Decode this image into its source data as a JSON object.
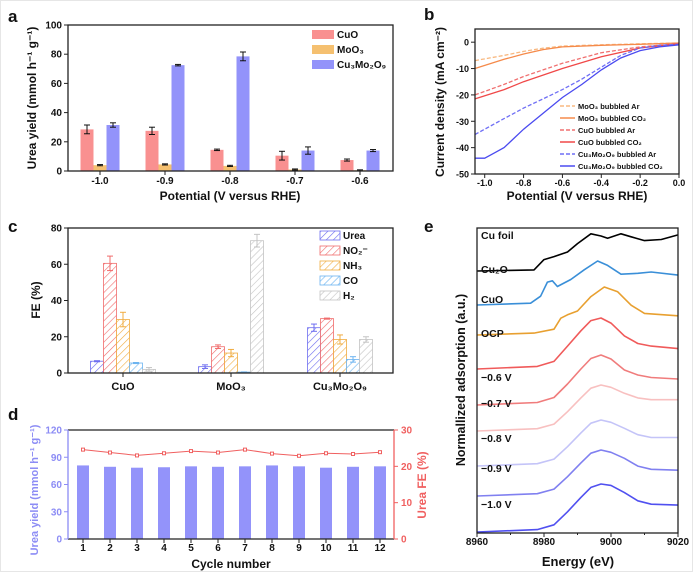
{
  "panel_letters": [
    "a",
    "b",
    "c",
    "d",
    "e"
  ],
  "chart_data": [
    {
      "panel": "a",
      "type": "bar",
      "xlabel": "Potential (V versus RHE)",
      "ylabel": "Urea yield (mmol h⁻¹ g⁻¹)",
      "ylim": [
        0,
        100
      ],
      "yticks": [
        "0",
        "20",
        "40",
        "60",
        "80",
        "100"
      ],
      "categories": [
        "-1.0",
        "-0.9",
        "-0.8",
        "-0.7",
        "-0.6"
      ],
      "legend_position": "top-right",
      "series": [
        {
          "name": "CuO",
          "color": "#f99090",
          "values": [
            28.5,
            27.5,
            14.5,
            10.5,
            7.5
          ],
          "errors": [
            3,
            2.5,
            0.5,
            3,
            0.7
          ]
        },
        {
          "name": "MoO₃",
          "color": "#f5c070",
          "values": [
            4,
            4.5,
            3.5,
            1,
            0.5
          ],
          "errors": [
            0.4,
            0.4,
            0.4,
            0.4,
            0.3
          ]
        },
        {
          "name": "Cu₃Mo₂O₉",
          "color": "#9393fa",
          "values": [
            31.5,
            72.5,
            78.5,
            14,
            14
          ],
          "errors": [
            1.5,
            0.5,
            3,
            2.5,
            0.7
          ]
        }
      ]
    },
    {
      "panel": "b",
      "type": "line",
      "xlabel": "Potential (V versus RHE)",
      "ylabel": "Current density (mA cm⁻²)",
      "xlim": [
        -1.05,
        0
      ],
      "ylim": [
        -50,
        5
      ],
      "xticks": [
        "-1.0",
        "-0.8",
        "-0.6",
        "-0.4",
        "-0.2",
        "0.0"
      ],
      "yticks": [
        "0",
        "-10",
        "-20",
        "-30",
        "-40",
        "-50"
      ],
      "legend_position": "bottom-right",
      "series": [
        {
          "name": "MoO₃ bubbled Ar",
          "color": "#f8b880",
          "style": "dash",
          "x": [
            -1.05,
            -0.9,
            -0.8,
            -0.7,
            -0.6,
            -0.4,
            -0.2,
            0
          ],
          "y": [
            -7,
            -5,
            -3.5,
            -2.3,
            -1.5,
            -1,
            -0.6,
            -0.3
          ]
        },
        {
          "name": "MoO₃ bubbled CO₂",
          "color": "#f58a4a",
          "style": "solid",
          "x": [
            -1.05,
            -0.9,
            -0.8,
            -0.7,
            -0.6,
            -0.4,
            -0.2,
            0
          ],
          "y": [
            -10,
            -6.5,
            -4.5,
            -2.8,
            -1.8,
            -1.2,
            -0.8,
            -0.3
          ]
        },
        {
          "name": "CuO bubbled Ar",
          "color": "#f07070",
          "style": "dash",
          "x": [
            -1.05,
            -0.9,
            -0.8,
            -0.7,
            -0.6,
            -0.4,
            -0.2,
            0
          ],
          "y": [
            -20,
            -16,
            -13,
            -10.5,
            -8,
            -4,
            -1.8,
            -0.5
          ]
        },
        {
          "name": "CuO bubbled CO₂",
          "color": "#f04848",
          "style": "solid",
          "x": [
            -1.05,
            -0.9,
            -0.8,
            -0.7,
            -0.6,
            -0.4,
            -0.2,
            0
          ],
          "y": [
            -21.5,
            -18,
            -15,
            -12.5,
            -10,
            -5.5,
            -2.2,
            -0.6
          ]
        },
        {
          "name": "Cu₃Mo₂O₉ bubbled Ar",
          "color": "#6f6ff5",
          "style": "dash",
          "x": [
            -1.05,
            -0.95,
            -0.9,
            -0.8,
            -0.7,
            -0.6,
            -0.5,
            -0.4,
            -0.3,
            -0.2,
            -0.1,
            0
          ],
          "y": [
            -35,
            -31,
            -29,
            -25,
            -21.5,
            -18,
            -14,
            -9.5,
            -5,
            -2.2,
            -1.2,
            -0.8
          ]
        },
        {
          "name": "Cu₃Mo₂O₉ bubbled CO₂",
          "color": "#4a4af0",
          "style": "solid",
          "x": [
            -1.05,
            -1.0,
            -0.95,
            -0.9,
            -0.8,
            -0.7,
            -0.6,
            -0.5,
            -0.4,
            -0.3,
            -0.2,
            -0.1,
            0
          ],
          "y": [
            -44,
            -44,
            -42,
            -40,
            -33,
            -27,
            -21,
            -16,
            -10.5,
            -6,
            -3.2,
            -1.8,
            -1
          ]
        }
      ]
    },
    {
      "panel": "c",
      "type": "bar",
      "xlabel": "",
      "ylabel": "FE (%)",
      "ylim": [
        0,
        80
      ],
      "yticks": [
        "0",
        "20",
        "40",
        "60",
        "80"
      ],
      "categories": [
        "CuO",
        "MoO₃",
        "Cu₃Mo₂O₉"
      ],
      "legend_position": "top-right",
      "series": [
        {
          "name": "Urea",
          "color": "#6f6ff0",
          "values": [
            6.5,
            3.5,
            25
          ],
          "errors": [
            0.3,
            1,
            2
          ]
        },
        {
          "name": "NO₂⁻",
          "color": "#f06c6c",
          "values": [
            60.5,
            14.5,
            30
          ],
          "errors": [
            4,
            1,
            0.3
          ]
        },
        {
          "name": "NH₃",
          "color": "#f0ac40",
          "values": [
            29.5,
            11,
            18.5
          ],
          "errors": [
            4,
            2,
            2.5
          ]
        },
        {
          "name": "CO",
          "color": "#6cb4f0",
          "values": [
            5.5,
            0.5,
            7.5
          ],
          "errors": [
            0.3,
            0.1,
            1.5
          ]
        },
        {
          "name": "H₂",
          "color": "#c4c4c4",
          "values": [
            2,
            73,
            18.5
          ],
          "errors": [
            1,
            3.5,
            1.5
          ]
        }
      ]
    },
    {
      "panel": "d",
      "type": "bar",
      "xlabel": "Cycle number",
      "ylabel": "Urea yield (mmol h⁻¹ g⁻¹)",
      "y2label": "Urea FE (%)",
      "ylim": [
        0,
        120
      ],
      "y2lim": [
        0,
        30
      ],
      "yticks": [
        "0",
        "30",
        "60",
        "90",
        "120"
      ],
      "y2ticks": [
        "0",
        "10",
        "20",
        "30"
      ],
      "categories": [
        "1",
        "2",
        "3",
        "4",
        "5",
        "6",
        "7",
        "8",
        "9",
        "10",
        "11",
        "12"
      ],
      "left_axis_color": "#8c8cf5",
      "right_axis_color": "#f06060",
      "series": [
        {
          "axis": "left",
          "type": "bar",
          "color": "#9393fa",
          "values": [
            81,
            79.5,
            78.5,
            79,
            80,
            79.5,
            80,
            81,
            80,
            78.5,
            79.5,
            80
          ]
        },
        {
          "axis": "right",
          "type": "line",
          "color": "#f06060",
          "values": [
            24.6,
            23.8,
            23,
            23.6,
            24.2,
            23.8,
            24.6,
            23.5,
            22.9,
            23.6,
            23.4,
            23.9
          ]
        }
      ]
    },
    {
      "panel": "e",
      "type": "line",
      "xlabel": "Energy (eV)",
      "ylabel": "Normallized adsorption (a.u.)",
      "xlim": [
        8960,
        9020
      ],
      "xticks": [
        "8960",
        "8980",
        "9000",
        "9020"
      ],
      "series": [
        {
          "name": "Cu foil",
          "color": "#000000",
          "x": [
            8960,
            8977,
            8980,
            8983,
            8987,
            8990,
            8994,
            8997,
            8999,
            9003,
            9006,
            9010,
            9015,
            9020
          ],
          "y": [
            0,
            0.03,
            0.3,
            0.38,
            0.5,
            0.72,
            0.98,
            0.92,
            0.86,
            0.98,
            0.9,
            0.8,
            0.83,
            0.95
          ]
        },
        {
          "name": "Cu₂O",
          "color": "#3a8fd8",
          "x": [
            8960,
            8976,
            8979,
            8981,
            8982.5,
            8984,
            8988,
            8992,
            8996,
            8999,
            9003,
            9008,
            9012,
            9020
          ],
          "y": [
            0,
            0.04,
            0.2,
            0.52,
            0.55,
            0.42,
            0.58,
            0.8,
            1.0,
            0.9,
            0.7,
            0.72,
            0.75,
            0.68
          ]
        },
        {
          "name": "CuO",
          "color": "#e8a030",
          "x": [
            8960,
            8977,
            8983,
            8985,
            8987,
            8990,
            8994,
            8998,
            9002,
            9006,
            9010,
            9020
          ],
          "y": [
            0,
            0.04,
            0.12,
            0.35,
            0.42,
            0.5,
            0.8,
            1.0,
            0.9,
            0.62,
            0.45,
            0.4
          ]
        },
        {
          "name": "OCP",
          "color": "#f05a5a",
          "x": [
            8960,
            8978,
            8983,
            8987,
            8991,
            8994,
            8997,
            9000,
            9004,
            9008,
            9012,
            9020
          ],
          "y": [
            0,
            0.05,
            0.15,
            0.45,
            0.75,
            0.95,
            1.0,
            0.9,
            0.65,
            0.5,
            0.45,
            0.4
          ]
        },
        {
          "name": "−0.6 V",
          "color": "#f07c7c",
          "x": [
            8960,
            8978,
            8983,
            8987,
            8991,
            8994,
            8997,
            9000,
            9004,
            9008,
            9012,
            9020
          ],
          "y": [
            0,
            0.05,
            0.15,
            0.42,
            0.72,
            0.93,
            1.0,
            0.92,
            0.7,
            0.6,
            0.55,
            0.52
          ]
        },
        {
          "name": "−0.7 V",
          "color": "#f8c0c0",
          "x": [
            8960,
            8978,
            8983,
            8987,
            8991,
            8994,
            8997,
            9000,
            9004,
            9008,
            9012,
            9020
          ],
          "y": [
            0,
            0.05,
            0.15,
            0.42,
            0.72,
            0.93,
            1.0,
            0.95,
            0.82,
            0.72,
            0.68,
            0.68
          ]
        },
        {
          "name": "−0.8 V",
          "color": "#c4c4f8",
          "x": [
            8960,
            8978,
            8983,
            8987,
            8991,
            8994,
            8997,
            9000,
            9004,
            9008,
            9012,
            9020
          ],
          "y": [
            0,
            0.05,
            0.15,
            0.42,
            0.72,
            0.93,
            1.0,
            0.95,
            0.82,
            0.68,
            0.62,
            0.62
          ]
        },
        {
          "name": "−0.9 V",
          "color": "#8080f0",
          "x": [
            8960,
            8978,
            8983,
            8987,
            8991,
            8994,
            8997,
            9000,
            9004,
            9008,
            9012,
            9020
          ],
          "y": [
            0,
            0.05,
            0.15,
            0.42,
            0.72,
            0.93,
            1.0,
            0.95,
            0.82,
            0.65,
            0.58,
            0.56
          ]
        },
        {
          "name": "−1.0 V",
          "color": "#5050f0",
          "x": [
            8960,
            8978,
            8983,
            8987,
            8991,
            8994,
            8997,
            9000,
            9004,
            9008,
            9012,
            9020
          ],
          "y": [
            0,
            0.05,
            0.15,
            0.42,
            0.72,
            0.93,
            1.0,
            0.97,
            0.82,
            0.65,
            0.58,
            0.56
          ]
        }
      ]
    }
  ]
}
